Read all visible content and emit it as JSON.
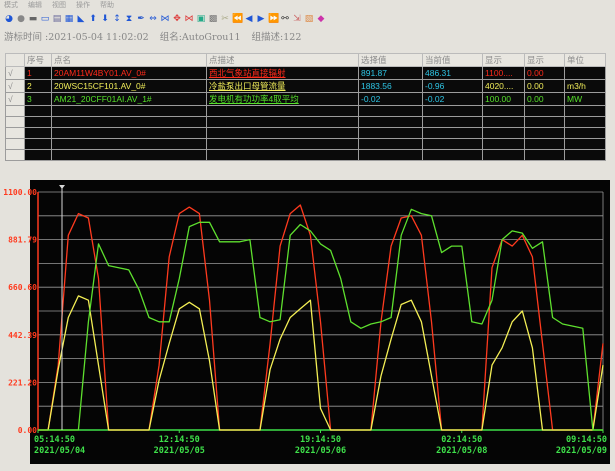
{
  "menu": [
    "模式",
    "编辑",
    "视图",
    "操作",
    "帮助"
  ],
  "toolbar": {
    "icons": [
      "refresh-icon",
      "record-icon",
      "minus-icon",
      "folder-icon",
      "save-icon",
      "grid-icon",
      "chart-icon",
      "arrow-up-icon",
      "arrow-down-icon",
      "updown-icon",
      "hourglass-icon",
      "pen-icon",
      "expand-horizontal-icon",
      "collapse-horizontal-icon",
      "move-icon",
      "split-icon",
      "zoom-icon",
      "print-icon",
      "tool-icon",
      "first-icon",
      "prev-icon",
      "next-icon",
      "last-icon",
      "binoculars-icon",
      "export-icon",
      "report-icon",
      "palette-icon"
    ]
  },
  "info": {
    "cursor_time": "游标时间 :2021-05-04 11:02:02",
    "group_name": "组名:AutoGrou11",
    "group_desc": "组描述:122"
  },
  "table": {
    "headers": [
      "",
      "序号",
      "点名",
      "点描述",
      "选择值",
      "当前值",
      "显示",
      "显示",
      "单位"
    ],
    "rows": [
      {
        "check": "√",
        "no": "1",
        "name": "20AM11W4BY01.AV_0#",
        "desc": "西北气象站直接辐射",
        "selected": "891.87",
        "current": "486.31",
        "display_max": "1100....",
        "display_min": "0.00",
        "unit": "",
        "color": "#ff2a1a"
      },
      {
        "check": "√",
        "no": "2",
        "name": "20WSC15CF101.AV_0#",
        "desc": "冷盐泵出口母管流量",
        "selected": "1883.56",
        "current": "-0.96",
        "display_max": "4020....",
        "display_min": "0.00",
        "unit": "m3/h",
        "color": "#f2ee5a"
      },
      {
        "check": "√",
        "no": "3",
        "name": "AM21_20CFF01AI.AV_1#",
        "desc": "发电机有功功率4取平均",
        "selected": "-0.02",
        "current": "-0.02",
        "display_max": "100.00",
        "display_min": "0.00",
        "unit": "MW",
        "color": "#55e02a"
      }
    ],
    "empty_rows": 5,
    "value_color": "#2ec6e6"
  },
  "chart_data": {
    "type": "line",
    "ylim": [
      0,
      1100
    ],
    "yticks": [
      "0.00",
      "221.20",
      "442.39",
      "660.60",
      "881.79",
      "1100.00"
    ],
    "xticks": [
      {
        "time": "05:14:50",
        "date": "2021/05/04"
      },
      {
        "time": "12:14:50",
        "date": "2021/05/05"
      },
      {
        "time": "19:14:50",
        "date": "2021/05/06"
      },
      {
        "time": "02:14:50",
        "date": "2021/05/08"
      },
      {
        "time": "09:14:50",
        "date": "2021/05/09"
      }
    ],
    "grid": true,
    "cursor_time": "2021-05-04 11:02:02",
    "series": [
      {
        "color": "#ff3a1e",
        "values": [
          0,
          0,
          300,
          900,
          1000,
          980,
          700,
          0,
          0,
          0,
          0,
          0,
          300,
          800,
          1000,
          1030,
          1000,
          600,
          0,
          0,
          0,
          0,
          0,
          400,
          850,
          1000,
          1040,
          900,
          500,
          0,
          0,
          0,
          0,
          0,
          500,
          850,
          980,
          990,
          900,
          500,
          0,
          0,
          0,
          0,
          0,
          750,
          880,
          850,
          900,
          800,
          400,
          0,
          0,
          0,
          0,
          0,
          400
        ]
      },
      {
        "color": "#f4ef55",
        "values": [
          0,
          0,
          280,
          520,
          620,
          600,
          300,
          0,
          0,
          0,
          0,
          0,
          230,
          400,
          560,
          590,
          560,
          320,
          0,
          0,
          0,
          0,
          0,
          280,
          420,
          520,
          560,
          600,
          100,
          0,
          0,
          0,
          0,
          0,
          250,
          420,
          580,
          600,
          500,
          250,
          0,
          0,
          0,
          0,
          0,
          300,
          380,
          500,
          550,
          380,
          0,
          0,
          0,
          0,
          0,
          0,
          300
        ]
      },
      {
        "color": "#5ee02e",
        "values": [
          0,
          0,
          0,
          0,
          0,
          500,
          860,
          760,
          750,
          740,
          650,
          520,
          500,
          500,
          700,
          940,
          960,
          960,
          870,
          870,
          870,
          880,
          520,
          500,
          510,
          900,
          950,
          920,
          860,
          830,
          700,
          500,
          470,
          490,
          500,
          520,
          900,
          1020,
          1000,
          990,
          820,
          850,
          850,
          500,
          490,
          600,
          880,
          920,
          910,
          840,
          870,
          520,
          490,
          480,
          470,
          0,
          0
        ]
      }
    ]
  }
}
